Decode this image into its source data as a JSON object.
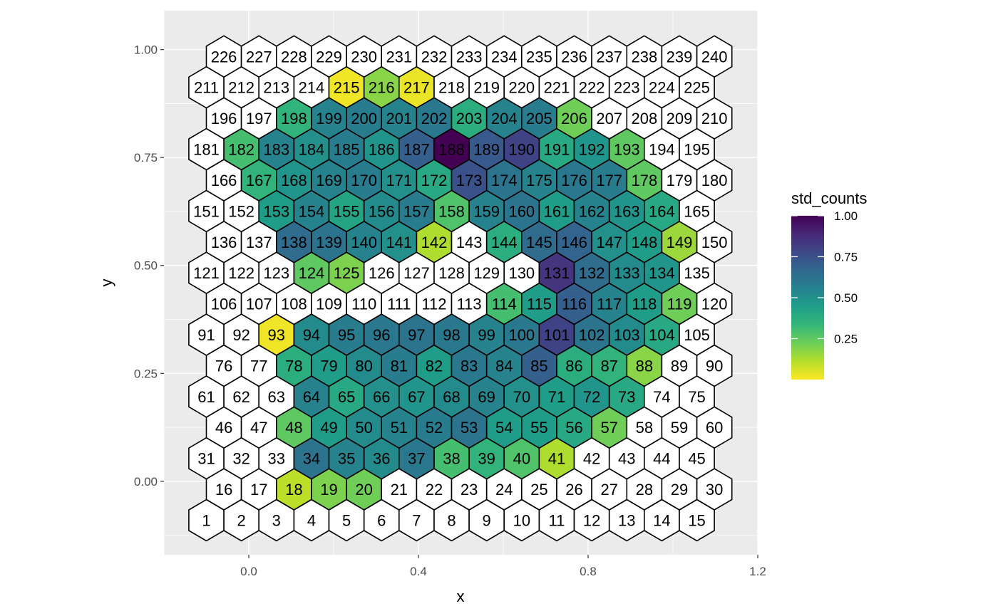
{
  "chart_data": {
    "type": "heatmap",
    "shape": "hexagon",
    "xlabel": "x",
    "ylabel": "y",
    "xlim": [
      -0.2,
      1.2
    ],
    "ylim": [
      -0.17,
      1.09
    ],
    "x_ticks": [
      0.0,
      0.4,
      0.8,
      1.2
    ],
    "x_tick_labels": [
      "0.0",
      "0.4",
      "0.8",
      "1.2"
    ],
    "y_ticks": [
      0.0,
      0.25,
      0.5,
      0.75,
      1.0
    ],
    "y_tick_labels": [
      "0.00",
      "0.25",
      "0.50",
      "0.75",
      "1.00"
    ],
    "grid": true,
    "grid_columns": 15,
    "grid_rows": 16,
    "column_spacing": 0.0826,
    "row_spacing": 0.0716,
    "first_center": [
      -0.1,
      -0.09
    ],
    "legend": {
      "title": "std_counts",
      "position": "right",
      "ticks": [
        0.25,
        0.5,
        0.75,
        1.0
      ],
      "tick_labels": [
        "0.25",
        "0.50",
        "0.75",
        "1.00"
      ],
      "range": [
        0.0,
        1.0
      ],
      "palette": [
        "#fde725",
        "#b5de2b",
        "#6ece58",
        "#35b779",
        "#1f9e89",
        "#26828e",
        "#31688e",
        "#3e4989",
        "#482878",
        "#440154"
      ]
    },
    "empty_fill": "#ffffff",
    "cells": [
      {
        "id": 18,
        "value": 0.1
      },
      {
        "id": 19,
        "value": 0.2
      },
      {
        "id": 20,
        "value": 0.22
      },
      {
        "id": 34,
        "value": 0.62
      },
      {
        "id": 35,
        "value": 0.55
      },
      {
        "id": 36,
        "value": 0.52
      },
      {
        "id": 37,
        "value": 0.6
      },
      {
        "id": 38,
        "value": 0.3
      },
      {
        "id": 39,
        "value": 0.35
      },
      {
        "id": 40,
        "value": 0.28
      },
      {
        "id": 41,
        "value": 0.12
      },
      {
        "id": 48,
        "value": 0.25
      },
      {
        "id": 49,
        "value": 0.45
      },
      {
        "id": 50,
        "value": 0.52
      },
      {
        "id": 51,
        "value": 0.55
      },
      {
        "id": 52,
        "value": 0.58
      },
      {
        "id": 53,
        "value": 0.62
      },
      {
        "id": 54,
        "value": 0.45
      },
      {
        "id": 55,
        "value": 0.45
      },
      {
        "id": 56,
        "value": 0.4
      },
      {
        "id": 57,
        "value": 0.22
      },
      {
        "id": 64,
        "value": 0.55
      },
      {
        "id": 65,
        "value": 0.4
      },
      {
        "id": 66,
        "value": 0.5
      },
      {
        "id": 67,
        "value": 0.48
      },
      {
        "id": 68,
        "value": 0.52
      },
      {
        "id": 69,
        "value": 0.55
      },
      {
        "id": 70,
        "value": 0.5
      },
      {
        "id": 71,
        "value": 0.45
      },
      {
        "id": 72,
        "value": 0.48
      },
      {
        "id": 73,
        "value": 0.4
      },
      {
        "id": 78,
        "value": 0.38
      },
      {
        "id": 79,
        "value": 0.45
      },
      {
        "id": 80,
        "value": 0.52
      },
      {
        "id": 81,
        "value": 0.58
      },
      {
        "id": 82,
        "value": 0.45
      },
      {
        "id": 83,
        "value": 0.6
      },
      {
        "id": 84,
        "value": 0.55
      },
      {
        "id": 85,
        "value": 0.7
      },
      {
        "id": 86,
        "value": 0.38
      },
      {
        "id": 87,
        "value": 0.35
      },
      {
        "id": 88,
        "value": 0.18
      },
      {
        "id": 93,
        "value": 0.02
      },
      {
        "id": 94,
        "value": 0.52
      },
      {
        "id": 95,
        "value": 0.58
      },
      {
        "id": 96,
        "value": 0.6
      },
      {
        "id": 97,
        "value": 0.62
      },
      {
        "id": 98,
        "value": 0.6
      },
      {
        "id": 99,
        "value": 0.55
      },
      {
        "id": 100,
        "value": 0.6
      },
      {
        "id": 101,
        "value": 0.8
      },
      {
        "id": 102,
        "value": 0.62
      },
      {
        "id": 103,
        "value": 0.52
      },
      {
        "id": 104,
        "value": 0.4
      },
      {
        "id": 114,
        "value": 0.3
      },
      {
        "id": 115,
        "value": 0.45
      },
      {
        "id": 116,
        "value": 0.7
      },
      {
        "id": 117,
        "value": 0.55
      },
      {
        "id": 118,
        "value": 0.45
      },
      {
        "id": 119,
        "value": 0.22
      },
      {
        "id": 124,
        "value": 0.25
      },
      {
        "id": 125,
        "value": 0.2
      },
      {
        "id": 131,
        "value": 0.85
      },
      {
        "id": 132,
        "value": 0.65
      },
      {
        "id": 133,
        "value": 0.52
      },
      {
        "id": 134,
        "value": 0.48
      },
      {
        "id": 138,
        "value": 0.65
      },
      {
        "id": 139,
        "value": 0.62
      },
      {
        "id": 140,
        "value": 0.55
      },
      {
        "id": 141,
        "value": 0.5
      },
      {
        "id": 142,
        "value": 0.12
      },
      {
        "id": 144,
        "value": 0.38
      },
      {
        "id": 145,
        "value": 0.65
      },
      {
        "id": 146,
        "value": 0.68
      },
      {
        "id": 147,
        "value": 0.5
      },
      {
        "id": 148,
        "value": 0.45
      },
      {
        "id": 149,
        "value": 0.15
      },
      {
        "id": 153,
        "value": 0.45
      },
      {
        "id": 154,
        "value": 0.55
      },
      {
        "id": 155,
        "value": 0.42
      },
      {
        "id": 156,
        "value": 0.52
      },
      {
        "id": 157,
        "value": 0.58
      },
      {
        "id": 158,
        "value": 0.28
      },
      {
        "id": 159,
        "value": 0.55
      },
      {
        "id": 160,
        "value": 0.62
      },
      {
        "id": 161,
        "value": 0.45
      },
      {
        "id": 162,
        "value": 0.55
      },
      {
        "id": 163,
        "value": 0.48
      },
      {
        "id": 164,
        "value": 0.4
      },
      {
        "id": 167,
        "value": 0.35
      },
      {
        "id": 168,
        "value": 0.48
      },
      {
        "id": 169,
        "value": 0.55
      },
      {
        "id": 170,
        "value": 0.58
      },
      {
        "id": 171,
        "value": 0.5
      },
      {
        "id": 172,
        "value": 0.4
      },
      {
        "id": 173,
        "value": 0.75
      },
      {
        "id": 174,
        "value": 0.62
      },
      {
        "id": 175,
        "value": 0.55
      },
      {
        "id": 176,
        "value": 0.6
      },
      {
        "id": 177,
        "value": 0.58
      },
      {
        "id": 178,
        "value": 0.25
      },
      {
        "id": 182,
        "value": 0.3
      },
      {
        "id": 183,
        "value": 0.55
      },
      {
        "id": 184,
        "value": 0.5
      },
      {
        "id": 185,
        "value": 0.58
      },
      {
        "id": 186,
        "value": 0.48
      },
      {
        "id": 187,
        "value": 0.7
      },
      {
        "id": 188,
        "value": 1.0
      },
      {
        "id": 189,
        "value": 0.72
      },
      {
        "id": 190,
        "value": 0.8
      },
      {
        "id": 191,
        "value": 0.4
      },
      {
        "id": 192,
        "value": 0.48
      },
      {
        "id": 193,
        "value": 0.25
      },
      {
        "id": 198,
        "value": 0.35
      },
      {
        "id": 199,
        "value": 0.55
      },
      {
        "id": 200,
        "value": 0.58
      },
      {
        "id": 201,
        "value": 0.55
      },
      {
        "id": 202,
        "value": 0.6
      },
      {
        "id": 203,
        "value": 0.38
      },
      {
        "id": 204,
        "value": 0.55
      },
      {
        "id": 205,
        "value": 0.58
      },
      {
        "id": 206,
        "value": 0.22
      },
      {
        "id": 215,
        "value": 0.02
      },
      {
        "id": 216,
        "value": 0.18
      },
      {
        "id": 217,
        "value": 0.03
      }
    ]
  }
}
